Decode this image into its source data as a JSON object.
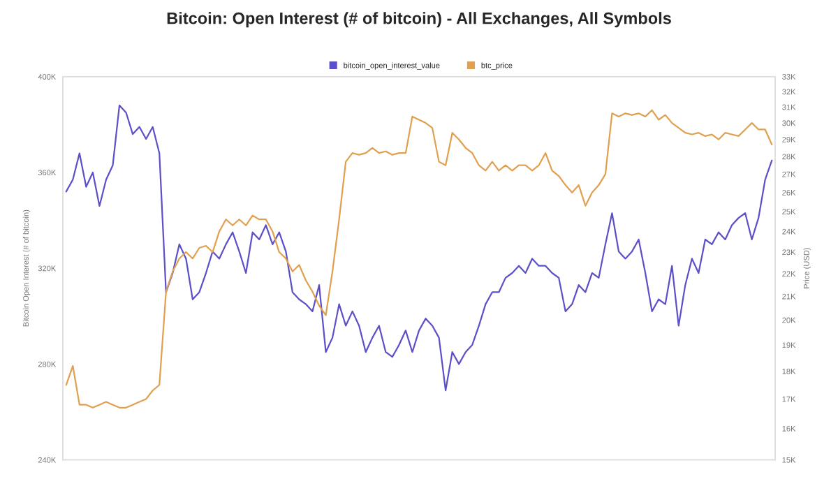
{
  "chart_data": {
    "type": "line",
    "title": "Bitcoin: Open Interest (# of bitcoin) - All Exchanges, All Symbols",
    "ylabel": "Bitcoin Open Interest (# of bitcoin)",
    "y2label": "Price (USD)",
    "categories": [
      null,
      null,
      null,
      null,
      null,
      null,
      null,
      null,
      null,
      null,
      null,
      null,
      null,
      null,
      null,
      null,
      null,
      null,
      null,
      null,
      null,
      null,
      null,
      null,
      null,
      null,
      null,
      null,
      null,
      null,
      null,
      null,
      null,
      null,
      null,
      null,
      null,
      null,
      null,
      null,
      null,
      null,
      null,
      null,
      null,
      null,
      null,
      null,
      null,
      null,
      null,
      null,
      null,
      null,
      null,
      null,
      null,
      null,
      null,
      null,
      null,
      null,
      null,
      null,
      null,
      null,
      null,
      null,
      null,
      null,
      null,
      null,
      null,
      null,
      null,
      null,
      null,
      null,
      null,
      null,
      null,
      null,
      null,
      null,
      null,
      null,
      null,
      null,
      null,
      null,
      null,
      null,
      null,
      null,
      null,
      null,
      null,
      null,
      null,
      null,
      null,
      null,
      null,
      null,
      null,
      null,
      null
    ],
    "series": [
      {
        "name": "bitcoin_open_interest_value",
        "color": "#5b50c8",
        "values": [
          352000,
          357000,
          368000,
          354000,
          360000,
          346000,
          357000,
          363000,
          388000,
          385000,
          376000,
          379000,
          374000,
          379000,
          368000,
          310000,
          318000,
          330000,
          324000,
          307000,
          310000,
          318000,
          327000,
          324000,
          330000,
          335000,
          327000,
          318000,
          335000,
          332000,
          338000,
          330000,
          335000,
          327000,
          310000,
          307000,
          305000,
          302000,
          313000,
          285000,
          291000,
          305000,
          296000,
          302000,
          296000,
          285000,
          291000,
          296000,
          285000,
          283000,
          288000,
          294000,
          285000,
          294000,
          299000,
          296000,
          291000,
          269000,
          285000,
          280000,
          285000,
          288000,
          296000,
          305000,
          310000,
          310000,
          316000,
          318000,
          321000,
          318000,
          324000,
          321000,
          321000,
          318000,
          316000,
          302000,
          305000,
          313000,
          310000,
          318000,
          316000,
          330000,
          343000,
          327000,
          324000,
          327000,
          332000,
          318000,
          302000,
          307000,
          305000,
          321000,
          296000,
          313000,
          324000,
          318000,
          332000,
          330000,
          335000,
          332000,
          338000,
          341000,
          343000,
          332000,
          341000,
          357000,
          365000
        ]
      },
      {
        "name": "btc_price",
        "color": "#e0a050",
        "axis": "y2",
        "values": [
          17500,
          18200,
          16800,
          16800,
          16700,
          16800,
          16900,
          16800,
          16700,
          16700,
          16800,
          16900,
          17000,
          17300,
          17500,
          21200,
          22100,
          22700,
          23000,
          22700,
          23200,
          23300,
          23000,
          24000,
          24600,
          24300,
          24600,
          24300,
          24800,
          24600,
          24600,
          24000,
          23000,
          22700,
          22100,
          22400,
          21700,
          21200,
          20600,
          20200,
          22100,
          24600,
          27700,
          28200,
          28100,
          28200,
          28500,
          28200,
          28300,
          28100,
          28200,
          28200,
          30400,
          30200,
          30000,
          29700,
          27700,
          27500,
          29400,
          29000,
          28500,
          28200,
          27500,
          27200,
          27700,
          27200,
          27500,
          27200,
          27500,
          27500,
          27200,
          27500,
          28200,
          27200,
          26900,
          26400,
          26000,
          26400,
          25300,
          26000,
          26400,
          27000,
          30600,
          30400,
          30600,
          30500,
          30600,
          30400,
          30800,
          30200,
          30500,
          30000,
          29700,
          29400,
          29300,
          29400,
          29200,
          29300,
          29000,
          29400,
          29300,
          29200,
          29600,
          30000,
          29600,
          29600,
          28700
        ]
      }
    ],
    "ylim": [
      240000,
      400000
    ],
    "yticks": [
      {
        "value": 240000,
        "label": "240K"
      },
      {
        "value": 280000,
        "label": "280K"
      },
      {
        "value": 320000,
        "label": "320K"
      },
      {
        "value": 360000,
        "label": "360K"
      },
      {
        "value": 400000,
        "label": "400K"
      }
    ],
    "log": "y2",
    "y2lim": [
      15000,
      33000
    ],
    "y2ticks": [
      {
        "value": 15000,
        "label": "15K"
      },
      {
        "value": 16000,
        "label": "16K"
      },
      {
        "value": 17000,
        "label": "17K"
      },
      {
        "value": 18000,
        "label": "18K"
      },
      {
        "value": 19000,
        "label": "19K"
      },
      {
        "value": 20000,
        "label": "20K"
      },
      {
        "value": 21000,
        "label": "21K"
      },
      {
        "value": 22000,
        "label": "22K"
      },
      {
        "value": 23000,
        "label": "23K"
      },
      {
        "value": 24000,
        "label": "24K"
      },
      {
        "value": 25000,
        "label": "25K"
      },
      {
        "value": 26000,
        "label": "26K"
      },
      {
        "value": 27000,
        "label": "27K"
      },
      {
        "value": 28000,
        "label": "28K"
      },
      {
        "value": 29000,
        "label": "29K"
      },
      {
        "value": 30000,
        "label": "30K"
      },
      {
        "value": 31000,
        "label": "31K"
      },
      {
        "value": 32000,
        "label": "32K"
      },
      {
        "value": 33000,
        "label": "33K"
      }
    ],
    "tick_labels": "y",
    "grid": false,
    "legend": "top"
  }
}
